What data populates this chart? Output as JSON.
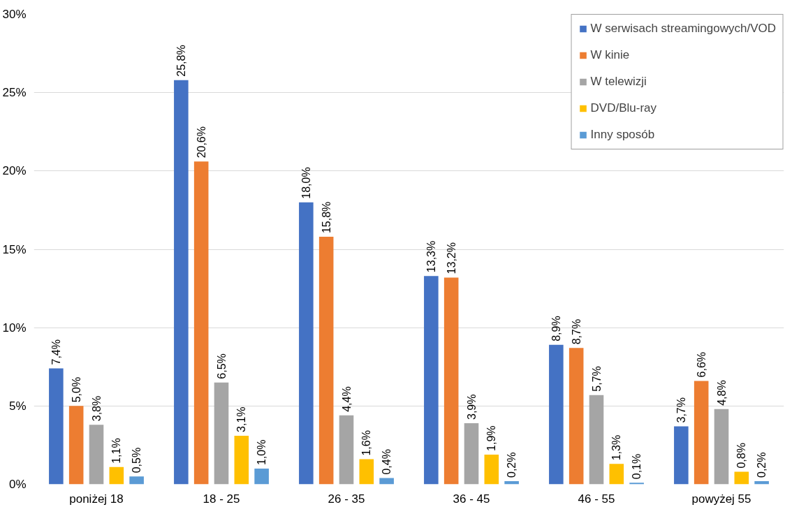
{
  "chart_data": {
    "type": "bar",
    "categories": [
      "poniżej 18",
      "18 - 25",
      "26 - 35",
      "36 - 45",
      "46 - 55",
      "powyżej 55"
    ],
    "series": [
      {
        "name": "W serwisach streamingowych/VOD",
        "color": "#4472c4",
        "values": [
          7.4,
          25.8,
          18.0,
          13.3,
          8.9,
          3.7
        ],
        "value_labels": [
          "7,4%",
          "25,8%",
          "18,0%",
          "13,3%",
          "8,9%",
          "3,7%"
        ]
      },
      {
        "name": "W kinie",
        "color": "#ed7d31",
        "values": [
          5.0,
          20.6,
          15.8,
          13.2,
          8.7,
          6.6
        ],
        "value_labels": [
          "5,0%",
          "20,6%",
          "15,8%",
          "13,2%",
          "8,7%",
          "6,6%"
        ]
      },
      {
        "name": "W telewizji",
        "color": "#a5a5a5",
        "values": [
          3.8,
          6.5,
          4.4,
          3.9,
          5.7,
          4.8
        ],
        "value_labels": [
          "3,8%",
          "6,5%",
          "4,4%",
          "3,9%",
          "5,7%",
          "4,8%"
        ]
      },
      {
        "name": "DVD/Blu-ray",
        "color": "#ffc000",
        "values": [
          1.1,
          3.1,
          1.6,
          1.9,
          1.3,
          0.8
        ],
        "value_labels": [
          "1,1%",
          "3,1%",
          "1,6%",
          "1,9%",
          "1,3%",
          "0,8%"
        ]
      },
      {
        "name": "Inny sposób",
        "color": "#5b9bd5",
        "values": [
          0.5,
          1.0,
          0.4,
          0.2,
          0.1,
          0.2
        ],
        "value_labels": [
          "0,5%",
          "1,0%",
          "0,4%",
          "0,2%",
          "0,1%",
          "0,2%"
        ]
      }
    ],
    "ylim": [
      0,
      30
    ],
    "yticks": [
      {
        "value": 0,
        "label": "0%"
      },
      {
        "value": 5,
        "label": "5%"
      },
      {
        "value": 10,
        "label": "10%"
      },
      {
        "value": 15,
        "label": "15%"
      },
      {
        "value": 20,
        "label": "20%"
      },
      {
        "value": 25,
        "label": "25%"
      },
      {
        "value": 30,
        "label": "30%"
      }
    ],
    "grid": "y",
    "legend": "top right"
  }
}
